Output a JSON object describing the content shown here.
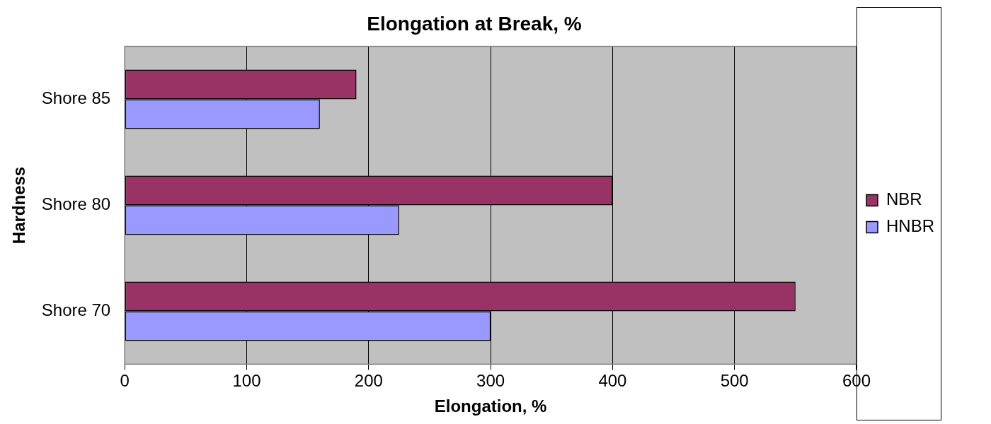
{
  "chart_data": {
    "type": "bar",
    "orientation": "horizontal",
    "title": "Elongation at Break, %",
    "x_label": "Elongation, %",
    "y_label": "Hardness",
    "categories": [
      "Shore 85",
      "Shore 80",
      "Shore 70"
    ],
    "series": [
      {
        "name": "NBR",
        "color": "#993366",
        "values": [
          190,
          400,
          550
        ]
      },
      {
        "name": "HNBR",
        "color": "#9999ff",
        "values": [
          160,
          225,
          300
        ]
      }
    ],
    "xlim": [
      0,
      600
    ],
    "xticks": [
      0,
      100,
      200,
      300,
      400,
      500,
      600
    ],
    "grid": true,
    "legend": "right"
  }
}
